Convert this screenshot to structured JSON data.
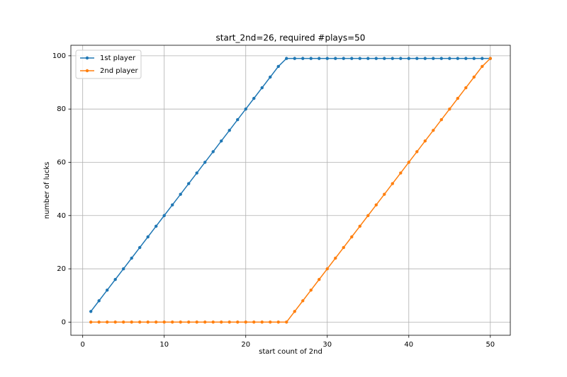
{
  "chart_data": {
    "type": "line",
    "title": "start_2nd=26, required #plays=50",
    "x_label": "start count of 2nd",
    "y_label": "number of lucks",
    "x": [
      1,
      2,
      3,
      4,
      5,
      6,
      7,
      8,
      9,
      10,
      11,
      12,
      13,
      14,
      15,
      16,
      17,
      18,
      19,
      20,
      21,
      22,
      23,
      24,
      25,
      26,
      27,
      28,
      29,
      30,
      31,
      32,
      33,
      34,
      35,
      36,
      37,
      38,
      39,
      40,
      41,
      42,
      43,
      44,
      45,
      46,
      47,
      48,
      49,
      50
    ],
    "series": [
      {
        "name": "1st player",
        "color": "#1f77b4",
        "values": [
          4,
          8,
          12,
          16,
          20,
          24,
          28,
          32,
          36,
          40,
          44,
          48,
          52,
          56,
          60,
          64,
          68,
          72,
          76,
          80,
          84,
          88,
          92,
          96,
          99,
          99,
          99,
          99,
          99,
          99,
          99,
          99,
          99,
          99,
          99,
          99,
          99,
          99,
          99,
          99,
          99,
          99,
          99,
          99,
          99,
          99,
          99,
          99,
          99,
          99
        ]
      },
      {
        "name": "2nd player",
        "color": "#ff7f0e",
        "values": [
          0,
          0,
          0,
          0,
          0,
          0,
          0,
          0,
          0,
          0,
          0,
          0,
          0,
          0,
          0,
          0,
          0,
          0,
          0,
          0,
          0,
          0,
          0,
          0,
          0,
          4,
          8,
          12,
          16,
          20,
          24,
          28,
          32,
          36,
          40,
          44,
          48,
          52,
          56,
          60,
          64,
          68,
          72,
          76,
          80,
          84,
          88,
          92,
          96,
          99
        ]
      }
    ],
    "xlim": [
      -1.45,
      52.45
    ],
    "ylim": [
      -4.95,
      103.95
    ],
    "xticks": [
      0,
      10,
      20,
      30,
      40,
      50
    ],
    "yticks": [
      0,
      20,
      40,
      60,
      80,
      100
    ],
    "grid": true,
    "legend": "upper left"
  }
}
